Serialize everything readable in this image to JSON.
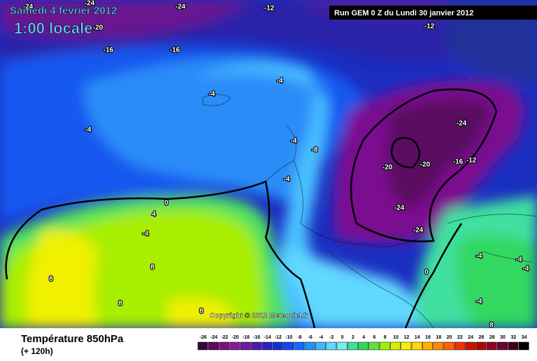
{
  "header": {
    "date": "Samedi 4 février 2012",
    "time": "1:00 locale",
    "run": "Run GEM 0 Z du Lundi 30 janvier 2012",
    "copyright": "Copyright © 2012 Meteociel.fr"
  },
  "footer": {
    "title": "Température 850hPa",
    "subtitle": "(+ 120h)"
  },
  "contour_labels": [
    "-24",
    "-24",
    "-24",
    "-20",
    "-16",
    "-16",
    "-12",
    "-12",
    "-4",
    "-4",
    "-4",
    "-4",
    "-8",
    "-4",
    "-24",
    "-20",
    "-20",
    "-16",
    "-12",
    "-24",
    "-24",
    "0",
    "4",
    "-4",
    "8",
    "8",
    "8",
    "8",
    "0",
    "-4",
    "-4",
    "-4",
    "-4",
    "8"
  ],
  "legend": {
    "ticks": [
      -26,
      -24,
      -22,
      -20,
      -18,
      -16,
      -14,
      -12,
      -10,
      -8,
      -6,
      -4,
      -2,
      0,
      2,
      4,
      6,
      8,
      10,
      12,
      14,
      16,
      18,
      20,
      22,
      24,
      26,
      28,
      30,
      32,
      34
    ],
    "colors": [
      "#3a0640",
      "#5a0a60",
      "#7a1080",
      "#8a1a9a",
      "#6a1aa0",
      "#4a1ab0",
      "#2a20c0",
      "#1030d8",
      "#1048f0",
      "#1068ff",
      "#2090ff",
      "#40b8ff",
      "#60d8ff",
      "#70f0f0",
      "#40e0a0",
      "#30d860",
      "#60e040",
      "#a0f000",
      "#d0f000",
      "#f0f000",
      "#ffd800",
      "#ffb000",
      "#ff8800",
      "#ff6000",
      "#f03000",
      "#d01000",
      "#b00000",
      "#900020",
      "#700030",
      "#400020",
      "#000000"
    ]
  }
}
